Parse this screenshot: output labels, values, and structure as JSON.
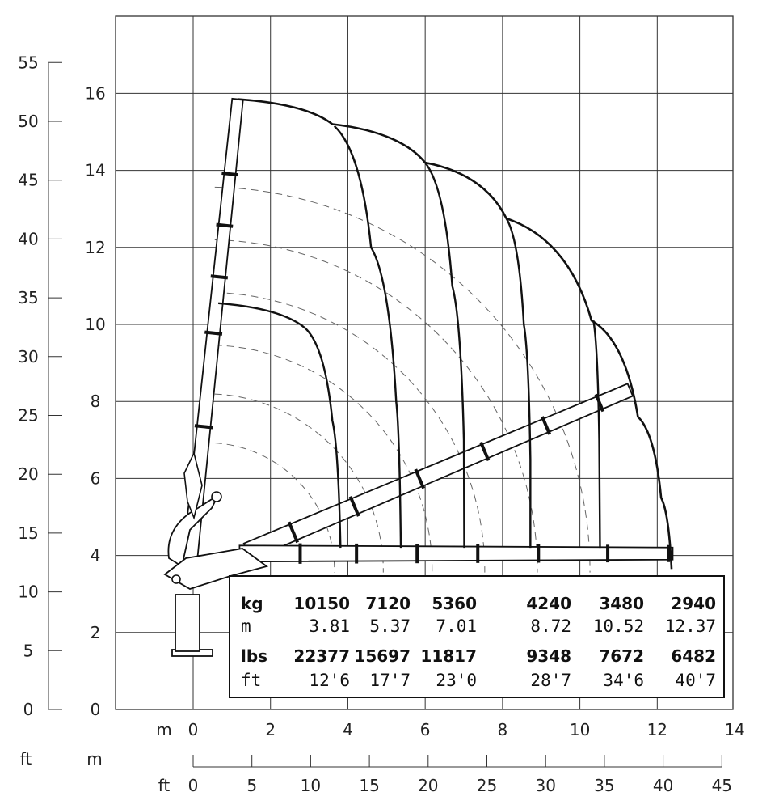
{
  "chart_data": {
    "type": "line",
    "title": "",
    "x_axis_m": {
      "label": "m",
      "ticks": [
        "0",
        "2",
        "4",
        "6",
        "8",
        "10",
        "12",
        "14"
      ],
      "range": [
        0,
        14
      ]
    },
    "x_axis_ft": {
      "label": "ft",
      "ticks": [
        "0",
        "5",
        "10",
        "15",
        "20",
        "25",
        "30",
        "35",
        "40",
        "45"
      ],
      "range": [
        0,
        45
      ]
    },
    "corner_labels": {
      "ft": "ft",
      "m": "m"
    },
    "y_axis_m": {
      "ticks": [
        "0",
        "2",
        "4",
        "6",
        "8",
        "10",
        "12",
        "14",
        "16"
      ],
      "range": [
        0,
        18
      ]
    },
    "y_axis_ft": {
      "ticks": [
        "0",
        "5",
        "10",
        "15",
        "20",
        "25",
        "30",
        "35",
        "40",
        "45",
        "50",
        "55"
      ],
      "range": [
        0,
        55
      ]
    },
    "load_table": {
      "rows": [
        {
          "unit": "kg",
          "values": [
            "10150",
            "7120",
            "5360",
            "4240",
            "3480",
            "2940"
          ],
          "bold": true
        },
        {
          "unit": "m",
          "values": [
            "3.81",
            "5.37",
            "7.01",
            "8.72",
            "10.52",
            "12.37"
          ],
          "bold": false
        },
        {
          "unit": "lbs",
          "values": [
            "22377",
            "15697",
            "11817",
            "9348",
            "7672",
            "6482"
          ],
          "bold": true
        },
        {
          "unit": "ft",
          "values": [
            "12'6",
            "17'7",
            "23'0",
            "28'7",
            "34'6",
            "40'7"
          ],
          "bold": false
        }
      ]
    },
    "load_curves": [
      {
        "reach_m": 3.81,
        "points": [
          [
            0.65,
            10.55
          ],
          [
            2.9,
            9.9
          ],
          [
            3.6,
            7.5
          ],
          [
            3.81,
            4.2
          ]
        ]
      },
      {
        "reach_m": 5.37,
        "points": [
          [
            3.65,
            15.15
          ],
          [
            4.6,
            12.0
          ],
          [
            5.25,
            8.0
          ],
          [
            5.37,
            4.2
          ]
        ]
      },
      {
        "reach_m": 7.01,
        "points": [
          [
            6.0,
            14.2
          ],
          [
            6.7,
            11.0
          ],
          [
            7.0,
            7.0
          ],
          [
            7.01,
            4.2
          ]
        ]
      },
      {
        "reach_m": 8.72,
        "points": [
          [
            8.1,
            12.75
          ],
          [
            8.55,
            10.0
          ],
          [
            8.72,
            6.5
          ],
          [
            8.72,
            4.2
          ]
        ]
      },
      {
        "reach_m": 10.52,
        "points": [
          [
            10.35,
            10.1
          ],
          [
            10.5,
            7.0
          ],
          [
            10.52,
            4.2
          ]
        ]
      }
    ],
    "outer_envelope": {
      "reach_m": 12.37,
      "points": [
        [
          1.15,
          15.85
        ],
        [
          3.6,
          15.2
        ],
        [
          6.0,
          14.2
        ],
        [
          8.1,
          12.75
        ],
        [
          10.3,
          10.1
        ],
        [
          11.5,
          7.6
        ],
        [
          12.1,
          5.5
        ],
        [
          12.37,
          3.65
        ]
      ]
    },
    "boom_positions": [
      {
        "name": "vertical",
        "start": [
          -0.1,
          3.7
        ],
        "end": [
          1.15,
          15.85
        ]
      },
      {
        "name": "inclined",
        "start": [
          1.4,
          4.1
        ],
        "end": [
          11.3,
          8.3
        ]
      },
      {
        "name": "horizontal",
        "start": [
          1.2,
          4.05
        ],
        "end": [
          12.4,
          4.05
        ]
      }
    ],
    "grid": true,
    "colors": {
      "line": "#111111",
      "grid": "#333333",
      "dashed": "#666666",
      "fill": "#ffffff"
    }
  }
}
